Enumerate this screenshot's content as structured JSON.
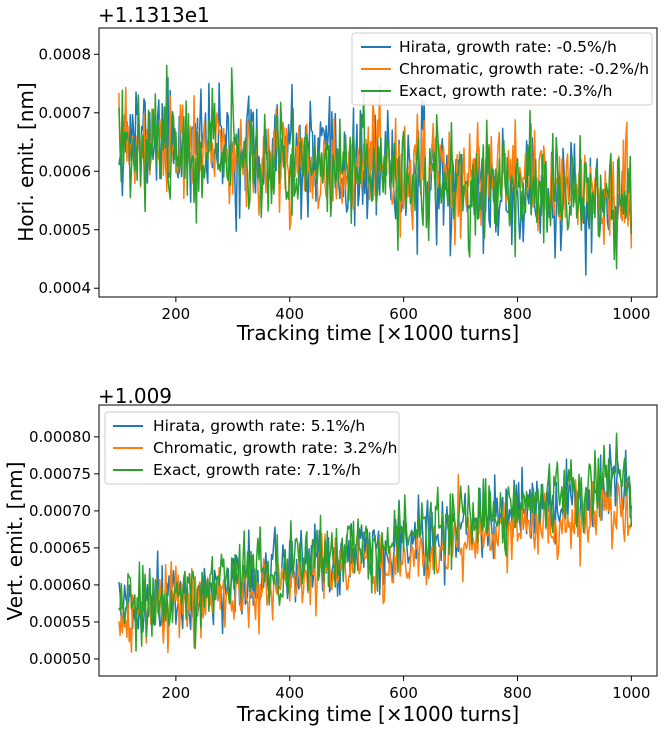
{
  "chart_data": [
    {
      "type": "line",
      "offset_text": "+1.1313e1",
      "xlabel": "Tracking time [×1000 turns]",
      "ylabel": "Hori. emit. [nm]",
      "xlim": [
        65,
        1045
      ],
      "ylim": [
        0.000385,
        0.000845
      ],
      "xticks": [
        200,
        400,
        600,
        800,
        1000
      ],
      "yticks": [
        0.0004,
        0.0005,
        0.0006,
        0.0007,
        0.0008
      ],
      "ytick_labels": [
        "0.0004",
        "0.0005",
        "0.0006",
        "0.0007",
        "0.0008"
      ],
      "legend_position": "upper right",
      "x_range": [
        100,
        1000
      ],
      "series": [
        {
          "name": "Hirata, growth rate: -0.5%/h",
          "color": "#1f77b4",
          "start": 0.000665,
          "end": 0.00053,
          "noise": 4.8e-05,
          "seed": 11
        },
        {
          "name": "Chromatic, growth rate: -0.2%/h",
          "color": "#ff7f0e",
          "start": 0.000645,
          "end": 0.00056,
          "noise": 4.5e-05,
          "seed": 23
        },
        {
          "name": "Exact, growth rate: -0.3%/h",
          "color": "#2ca02c",
          "start": 0.000655,
          "end": 0.000545,
          "noise": 4.7e-05,
          "seed": 37
        }
      ]
    },
    {
      "type": "line",
      "offset_text": "+1.009",
      "xlabel": "Tracking time [×1000 turns]",
      "ylabel": "Vert. emit. [nm]",
      "xlim": [
        65,
        1045
      ],
      "ylim": [
        0.000477,
        0.000843
      ],
      "xticks": [
        200,
        400,
        600,
        800,
        1000
      ],
      "yticks": [
        0.0005,
        0.00055,
        0.0006,
        0.00065,
        0.0007,
        0.00075,
        0.0008
      ],
      "ytick_labels": [
        "0.00050",
        "0.00055",
        "0.00060",
        "0.00065",
        "0.00070",
        "0.00075",
        "0.00080"
      ],
      "legend_position": "upper left",
      "x_range": [
        100,
        1000
      ],
      "series": [
        {
          "name": "Hirata, growth rate: 5.1%/h",
          "color": "#1f77b4",
          "start": 0.00056,
          "end": 0.00073,
          "noise": 2.5e-05,
          "seed": 51
        },
        {
          "name": "Chromatic, growth rate: 3.2%/h",
          "color": "#ff7f0e",
          "start": 0.000555,
          "end": 0.000705,
          "noise": 2.3e-05,
          "seed": 67
        },
        {
          "name": "Exact, growth rate: 7.1%/h",
          "color": "#2ca02c",
          "start": 0.000565,
          "end": 0.00075,
          "noise": 2.5e-05,
          "seed": 89
        }
      ]
    }
  ]
}
